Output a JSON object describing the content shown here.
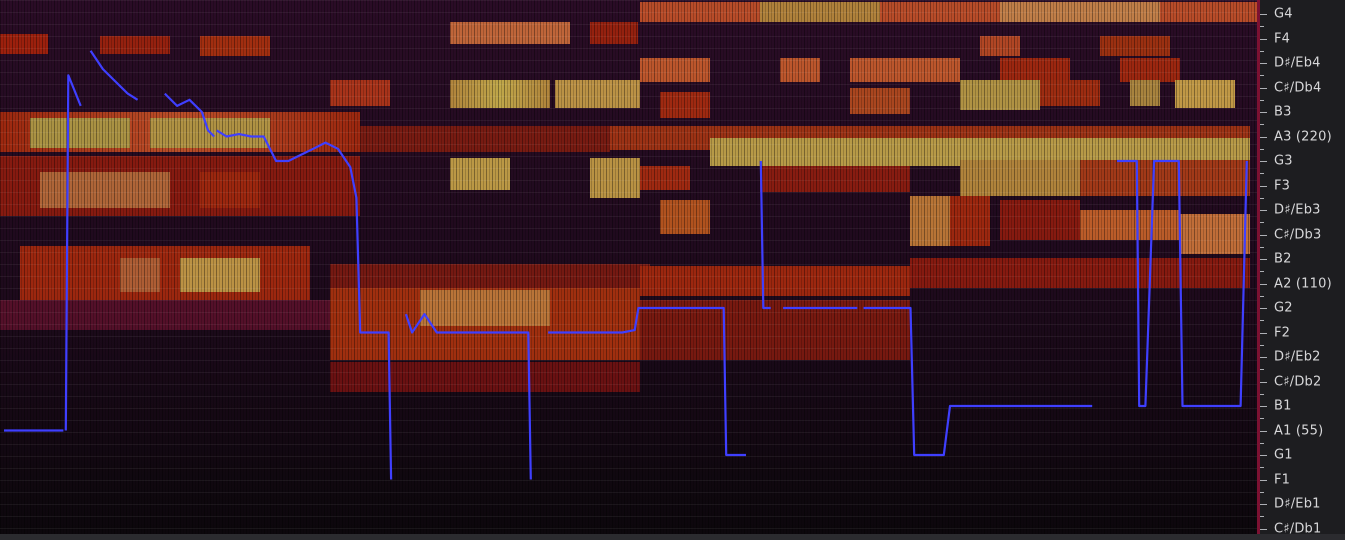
{
  "window": {
    "view": "pitch-spectrogram"
  },
  "colors": {
    "pitch_line": "#3f3fff",
    "background": "#120d14",
    "axis_panel": "#1d1d20",
    "axis_edge": "#7c1132",
    "axis_text": "#d7d7d9",
    "heat_low": "#2a0c22",
    "heat_mid": "#a0170a",
    "heat_high": "#b8a23b"
  },
  "pitch_axis": {
    "labels": [
      {
        "note": "G4",
        "semitone": 0
      },
      {
        "note": "F4",
        "semitone": 2
      },
      {
        "note": "D♯/Eb4",
        "semitone": 4
      },
      {
        "note": "C♯/Db4",
        "semitone": 6
      },
      {
        "note": "B3",
        "semitone": 8
      },
      {
        "note": "A3 (220)",
        "semitone": 10
      },
      {
        "note": "G3",
        "semitone": 12
      },
      {
        "note": "F3",
        "semitone": 14
      },
      {
        "note": "D♯/Eb3",
        "semitone": 16
      },
      {
        "note": "C♯/Db3",
        "semitone": 18
      },
      {
        "note": "B2",
        "semitone": 20
      },
      {
        "note": "A2 (110)",
        "semitone": 22
      },
      {
        "note": "G2",
        "semitone": 24
      },
      {
        "note": "F2",
        "semitone": 26
      },
      {
        "note": "D♯/Eb2",
        "semitone": 28
      },
      {
        "note": "C♯/Db2",
        "semitone": 30
      },
      {
        "note": "B1",
        "semitone": 32
      },
      {
        "note": "A1 (55)",
        "semitone": 34
      },
      {
        "note": "G1",
        "semitone": 36
      },
      {
        "note": "F1",
        "semitone": 38
      },
      {
        "note": "D♯/Eb1",
        "semitone": 40
      },
      {
        "note": "C♯/Db1",
        "semitone": 42
      }
    ]
  },
  "pitch_track": {
    "segments": [
      [
        [
          0,
          34
        ],
        [
          4,
          34
        ],
        [
          4.8,
          34
        ]
      ],
      [
        [
          5,
          34
        ],
        [
          5.2,
          5
        ],
        [
          5.6,
          6
        ],
        [
          6.2,
          7.5
        ]
      ],
      [
        [
          7,
          3
        ],
        [
          8,
          4.5
        ],
        [
          9,
          5.5
        ],
        [
          10,
          6.5
        ],
        [
          10.8,
          7
        ]
      ],
      [
        [
          13,
          6.5
        ],
        [
          14,
          7.5
        ],
        [
          15,
          7
        ],
        [
          16,
          8
        ],
        [
          16.5,
          9.5
        ],
        [
          17,
          10
        ]
      ],
      [
        [
          17.2,
          9.5
        ],
        [
          18,
          10
        ],
        [
          19,
          9.8
        ],
        [
          20,
          10
        ],
        [
          21,
          10
        ],
        [
          22,
          12
        ],
        [
          23,
          12
        ],
        [
          24,
          11.5
        ],
        [
          25,
          11
        ],
        [
          26,
          10.5
        ],
        [
          27,
          11
        ],
        [
          28,
          12.5
        ],
        [
          28.5,
          15
        ],
        [
          28.8,
          26
        ],
        [
          29.5,
          26
        ],
        [
          30,
          26
        ],
        [
          31.1,
          26
        ],
        [
          31.3,
          38
        ]
      ],
      [
        [
          32.5,
          24.5
        ],
        [
          33,
          26
        ],
        [
          34,
          24.5
        ],
        [
          35,
          26
        ],
        [
          38,
          26
        ],
        [
          41,
          26
        ],
        [
          42,
          26
        ],
        [
          42.4,
          26
        ],
        [
          42.6,
          38
        ]
      ],
      [
        [
          44,
          26
        ],
        [
          47,
          26
        ],
        [
          50,
          26
        ],
        [
          51,
          25.8
        ],
        [
          51.3,
          24
        ],
        [
          54,
          24
        ],
        [
          57,
          24
        ],
        [
          58.2,
          24
        ],
        [
          58.4,
          36
        ],
        [
          60,
          36
        ]
      ],
      [
        [
          61.2,
          12
        ],
        [
          61.4,
          24
        ],
        [
          62,
          24
        ]
      ],
      [
        [
          63,
          24
        ],
        [
          66,
          24
        ],
        [
          68,
          24
        ],
        [
          69,
          24
        ]
      ],
      [
        [
          69.5,
          24
        ],
        [
          72,
          24
        ],
        [
          73.3,
          24
        ],
        [
          73.6,
          36
        ],
        [
          75,
          36
        ],
        [
          76,
          36
        ],
        [
          76.5,
          32
        ],
        [
          77,
          32
        ],
        [
          78,
          32
        ],
        [
          80,
          32
        ],
        [
          82,
          32
        ],
        [
          84,
          32
        ],
        [
          86,
          32
        ],
        [
          88,
          32
        ]
      ],
      [
        [
          90,
          12
        ],
        [
          91,
          12
        ],
        [
          91.6,
          12
        ],
        [
          91.8,
          32
        ],
        [
          92.3,
          32
        ],
        [
          93,
          12
        ],
        [
          94,
          12
        ],
        [
          95,
          12
        ],
        [
          95.3,
          32
        ],
        [
          96,
          32
        ],
        [
          98,
          32
        ],
        [
          100,
          32
        ],
        [
          100.5,
          12
        ]
      ]
    ],
    "x_range": [
      0,
      101
    ],
    "semitone_range": [
      -0.5,
      43
    ]
  }
}
